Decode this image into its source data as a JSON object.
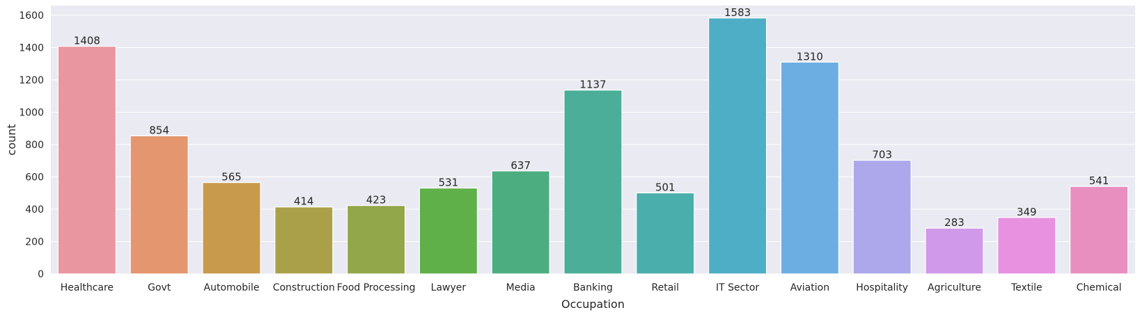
{
  "chart_data": {
    "type": "bar",
    "title": "",
    "xlabel": "Occupation",
    "ylabel": "count",
    "ylim": [
      0,
      1660
    ],
    "yticks": [
      0,
      200,
      400,
      600,
      800,
      1000,
      1200,
      1400,
      1600
    ],
    "grid": true,
    "legend": "none",
    "categories": [
      "Healthcare",
      "Govt",
      "Automobile",
      "Construction",
      "Food Processing",
      "Lawyer",
      "Media",
      "Banking",
      "Retail",
      "IT Sector",
      "Aviation",
      "Hospitality",
      "Agriculture",
      "Textile",
      "Chemical"
    ],
    "values": [
      1408,
      854,
      565,
      414,
      423,
      531,
      637,
      1137,
      501,
      1583,
      1310,
      703,
      283,
      349,
      541
    ],
    "colors": [
      "#ea96a0",
      "#e4966e",
      "#c89a4c",
      "#aba04a",
      "#92a64a",
      "#60b04a",
      "#4cae80",
      "#4aae98",
      "#4aaeac",
      "#4eaec6",
      "#6caee2",
      "#ada8eb",
      "#d199e9",
      "#e791e0",
      "#e88fbf"
    ],
    "plot_background": "#eaeaf2",
    "grid_color": "#ffffff",
    "text_color": "#262626"
  }
}
